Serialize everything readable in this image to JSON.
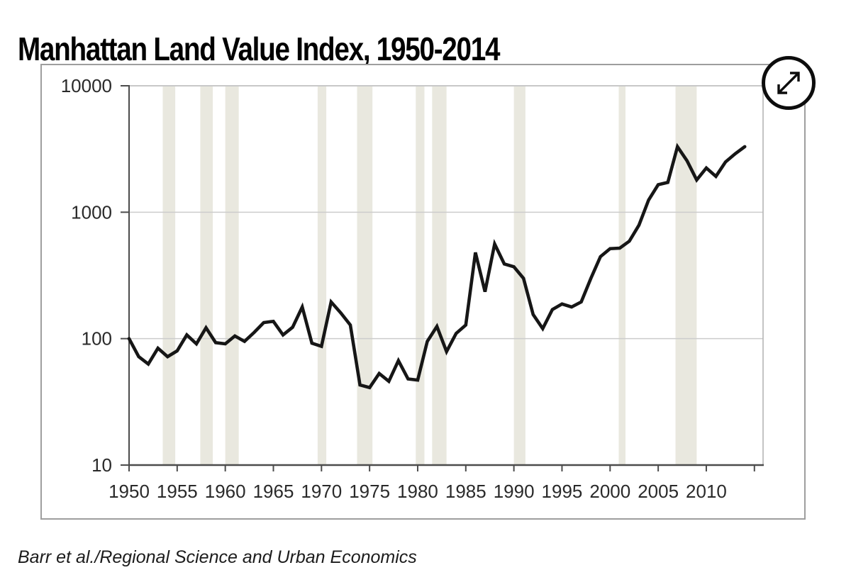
{
  "title": "Manhattan Land Value Index, 1950-2014",
  "source": "Barr et al./Regional Science and Urban Economics",
  "expand_button": {
    "icon": "expand-diagonal-arrows-icon"
  },
  "colors": {
    "line": "#161616",
    "recession_band": "#e9e8df",
    "gridline": "#cccccc",
    "frame_light": "#b5b5b5",
    "axis": "#4c4c4c",
    "label": "#2a2a2a",
    "panel_border": "#9e9e9e"
  },
  "chart_data": {
    "type": "line",
    "title": "Manhattan Land Value Index, 1950-2014",
    "xlabel": "",
    "ylabel": "",
    "yscale": "log",
    "ylim": [
      10,
      10000
    ],
    "xlim": [
      1950,
      2015.9
    ],
    "grid": "horizontal",
    "legend": "none",
    "yticks": [
      10,
      100,
      1000,
      10000
    ],
    "ytick_labels": [
      "10",
      "100",
      "1000",
      "10000"
    ],
    "xticks": [
      1950,
      1955,
      1960,
      1965,
      1970,
      1975,
      1980,
      1985,
      1990,
      1995,
      2000,
      2005,
      2010
    ],
    "xtick_labels": [
      "1950",
      "1955",
      "1960",
      "1965",
      "1970",
      "1975",
      "1980",
      "1985",
      "1990",
      "1995",
      "2000",
      "2005",
      "2010"
    ],
    "unlabeled_xticks": [
      2015
    ],
    "x": [
      1950,
      1951,
      1952,
      1953,
      1954,
      1955,
      1956,
      1957,
      1958,
      1959,
      1960,
      1961,
      1962,
      1963,
      1964,
      1965,
      1966,
      1967,
      1968,
      1969,
      1970,
      1971,
      1972,
      1973,
      1974,
      1975,
      1976,
      1977,
      1978,
      1979,
      1980,
      1981,
      1982,
      1983,
      1984,
      1985,
      1986,
      1987,
      1988,
      1989,
      1990,
      1991,
      1992,
      1993,
      1994,
      1995,
      1996,
      1997,
      1998,
      1999,
      2000,
      2001,
      2002,
      2003,
      2004,
      2005,
      2006,
      2007,
      2008,
      2009,
      2010,
      2011,
      2012,
      2013,
      2014
    ],
    "values": [
      100,
      72,
      63,
      84,
      72,
      80,
      107,
      91,
      122,
      93,
      91,
      105,
      95,
      112,
      134,
      137,
      107,
      123,
      178,
      92,
      87,
      195,
      160,
      128,
      43,
      41,
      53,
      46,
      67,
      48,
      47,
      95,
      125,
      79,
      110,
      128,
      480,
      235,
      560,
      390,
      370,
      300,
      155,
      120,
      170,
      188,
      178,
      195,
      300,
      445,
      515,
      520,
      590,
      790,
      1250,
      1650,
      1720,
      3300,
      2550,
      1800,
      2240,
      1920,
      2500,
      2900,
      3300
    ],
    "recession_bands": [
      [
        1953.5,
        1954.8
      ],
      [
        1957.4,
        1958.7
      ],
      [
        1960.0,
        1961.4
      ],
      [
        1969.6,
        1970.5
      ],
      [
        1973.7,
        1975.3
      ],
      [
        1979.8,
        1980.7
      ],
      [
        1981.5,
        1983.0
      ],
      [
        1990.0,
        1991.2
      ],
      [
        2000.9,
        2001.6
      ],
      [
        2006.8,
        2009.0
      ]
    ]
  }
}
